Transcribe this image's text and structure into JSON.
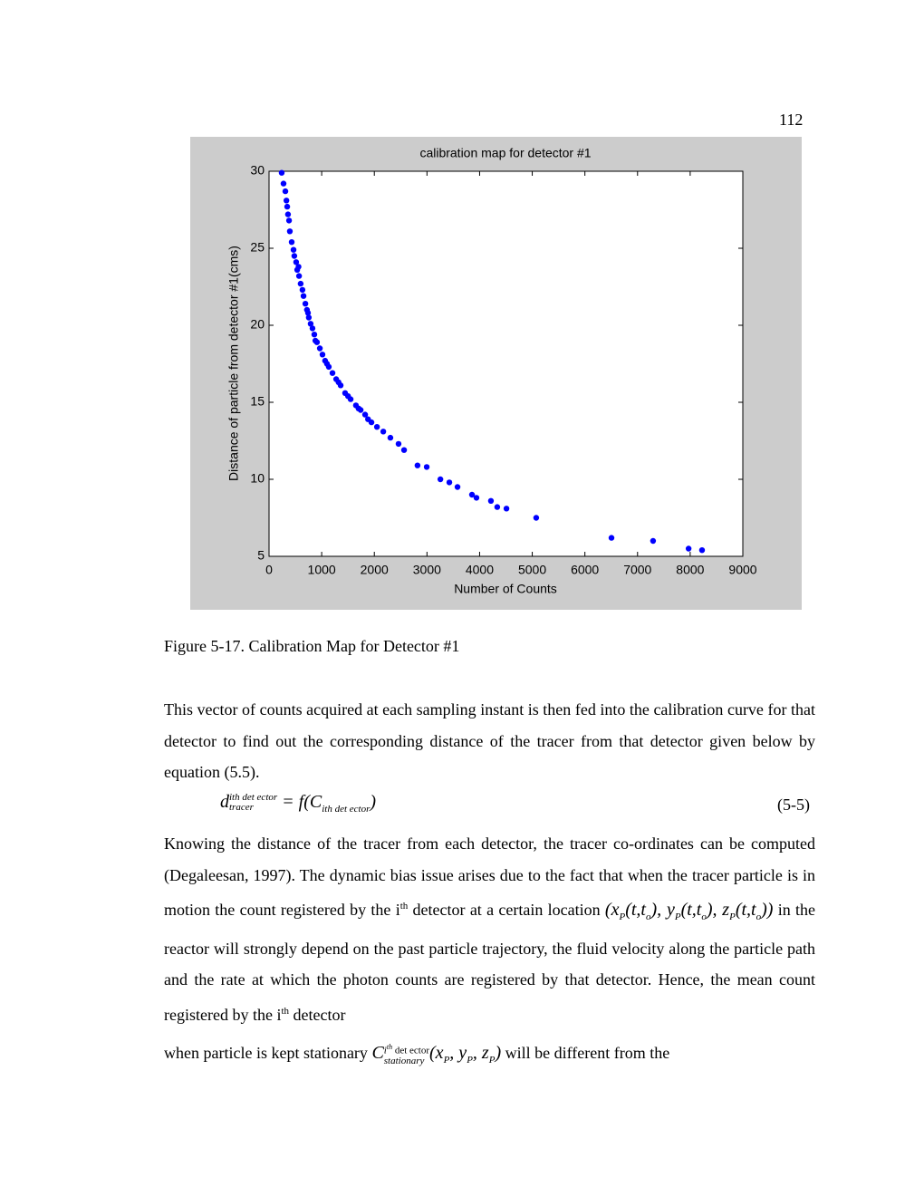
{
  "page_number": "112",
  "chart_data": {
    "type": "scatter",
    "title": "calibration map for detector #1",
    "x_label": "Number of Counts",
    "y_label": "Distance of particle from detector #1(cms)",
    "xlim": [
      0,
      9000
    ],
    "ylim": [
      5,
      30
    ],
    "xticks": [
      0,
      1000,
      2000,
      3000,
      4000,
      5000,
      6000,
      7000,
      8000,
      9000
    ],
    "yticks": [
      5,
      10,
      15,
      20,
      25,
      30
    ],
    "color": "#0000ff",
    "x": [
      240,
      275,
      310,
      330,
      345,
      360,
      380,
      395,
      430,
      465,
      480,
      515,
      535,
      570,
      600,
      635,
      655,
      690,
      720,
      755,
      790,
      825,
      860,
      910,
      965,
      1015,
      1065,
      1135,
      1205,
      1275,
      1360,
      1445,
      1550,
      1650,
      1740,
      1825,
      1945,
      2050,
      2170,
      2305,
      2460,
      2565,
      2820,
      2995,
      3255,
      3425,
      3580,
      3855,
      3940,
      4215,
      4335,
      4510,
      5075,
      6505,
      7295,
      7970,
      8225,
      560,
      740,
      880,
      1100,
      1320,
      1500,
      1700,
      1880
    ],
    "values": [
      29.9,
      29.2,
      28.7,
      28.1,
      27.7,
      27.2,
      26.8,
      26.1,
      25.4,
      24.9,
      24.5,
      24.1,
      23.6,
      23.2,
      22.7,
      22.3,
      21.9,
      21.4,
      21.0,
      20.5,
      20.1,
      19.8,
      19.4,
      18.9,
      18.5,
      18.1,
      17.7,
      17.3,
      16.9,
      16.5,
      16.1,
      15.6,
      15.2,
      14.8,
      14.5,
      14.2,
      13.7,
      13.4,
      13.1,
      12.7,
      12.3,
      11.9,
      10.9,
      10.8,
      10.0,
      9.8,
      9.5,
      9.0,
      8.8,
      8.6,
      8.2,
      8.1,
      7.5,
      6.2,
      6.0,
      5.5,
      5.4,
      23.8,
      20.8,
      19.0,
      17.5,
      16.3,
      15.4,
      14.6,
      13.9
    ]
  },
  "caption": "Figure 5-17. Calibration Map for Detector #1",
  "paragraph_1": "This vector of counts acquired at each sampling instant is then fed into the calibration curve for that detector to find out the corresponding distance of the tracer from that detector given below by equation (5.5).",
  "equation_1": {
    "lhs": "d",
    "lhs_sup": "ith det ector",
    "lhs_sub": "tracer",
    "rhs": "= f(C",
    "rhs_sub": "ith det ector",
    "close": ")",
    "number": "(5-5)"
  },
  "paragraph_2": {
    "text_1": "Knowing the distance of the tracer from each detector, the tracer co-ordinates can be computed (Degaleesan, 1997). The dynamic bias issue arises due to the fact that when the tracer particle is in motion the count registered by the i",
    "sup_1": "th",
    "text_2": " detector at a certain location ",
    "location": [
      "(x",
      "P",
      "(t,t",
      "o",
      "), y",
      "P",
      "(t,t",
      "o",
      "), z",
      "P",
      "(t,t",
      "o",
      "))"
    ],
    "text_3": " in the reactor will strongly depend on the past particle trajectory, the fluid velocity along the particle path and the rate at which the photon counts are registered by that detector. Hence, the mean count registered by the i",
    "sup_2": "th",
    "text_4": " detector"
  },
  "paragraph_3": {
    "text_1": "when particle is kept stationary ",
    "symbol": "C",
    "sup_i": "i",
    "sup_th": "th",
    "sup_rest": " det ector",
    "sub": "stationary",
    "args": [
      "(x",
      "P",
      ", y",
      "P",
      ", z",
      "P",
      ")"
    ],
    "text_2": " will be different from the"
  }
}
